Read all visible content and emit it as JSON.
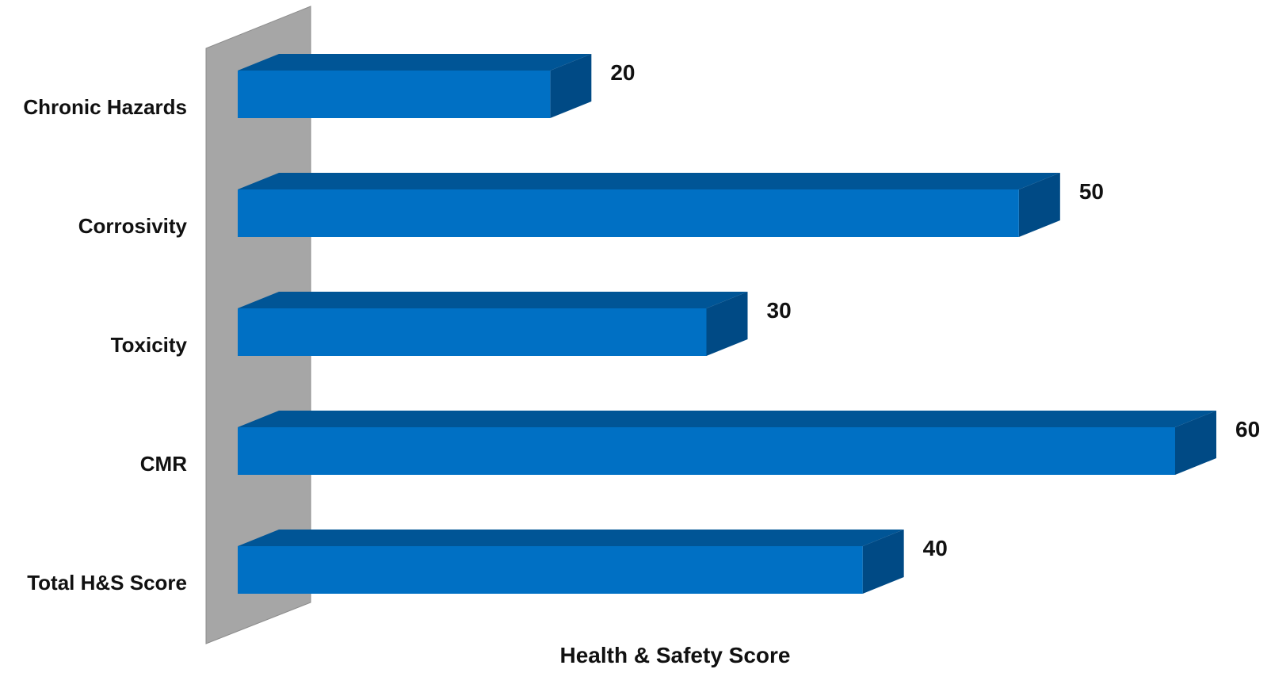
{
  "chart_data": {
    "type": "bar",
    "orientation": "horizontal",
    "style": "3d",
    "categories": [
      "Chronic Hazards",
      "Corrosivity",
      "Toxicity",
      "CMR",
      "Total H&S Score"
    ],
    "values": [
      20,
      50,
      30,
      60,
      40
    ],
    "xlabel": "Health & Safety Score",
    "ylabel": "",
    "xlim": [
      0,
      60
    ],
    "grid": false,
    "legend": "none",
    "colors": {
      "bar_front": "#0070C4",
      "bar_top": "#005596",
      "bar_side": "#004A85",
      "back_wall": "#A6A6A6",
      "back_wall_edge": "#8C8C8C"
    }
  }
}
